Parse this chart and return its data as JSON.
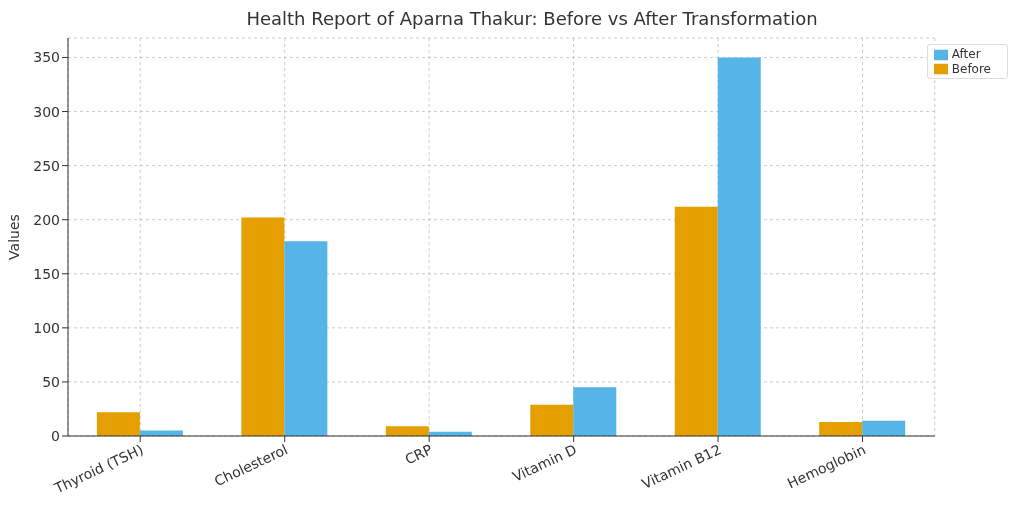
{
  "chart_data": {
    "type": "bar",
    "title": "Health Report of Aparna Thakur: Before vs After Transformation",
    "ylabel": "Values",
    "categories": [
      "Thyroid (TSH)",
      "Cholesterol",
      "CRP",
      "Vitamin D",
      "Vitamin B12",
      "Hemoglobin"
    ],
    "series": [
      {
        "name": "Before",
        "color": "#e69f00",
        "values": [
          22,
          202,
          9,
          29,
          212,
          13
        ]
      },
      {
        "name": "After",
        "color": "#56b4e9",
        "values": [
          5,
          180,
          4,
          45,
          350,
          14
        ]
      }
    ],
    "ylim": [
      0,
      368
    ],
    "yticks": [
      0,
      50,
      100,
      150,
      200,
      250,
      300,
      350
    ],
    "grid": true,
    "legend": "top right"
  }
}
